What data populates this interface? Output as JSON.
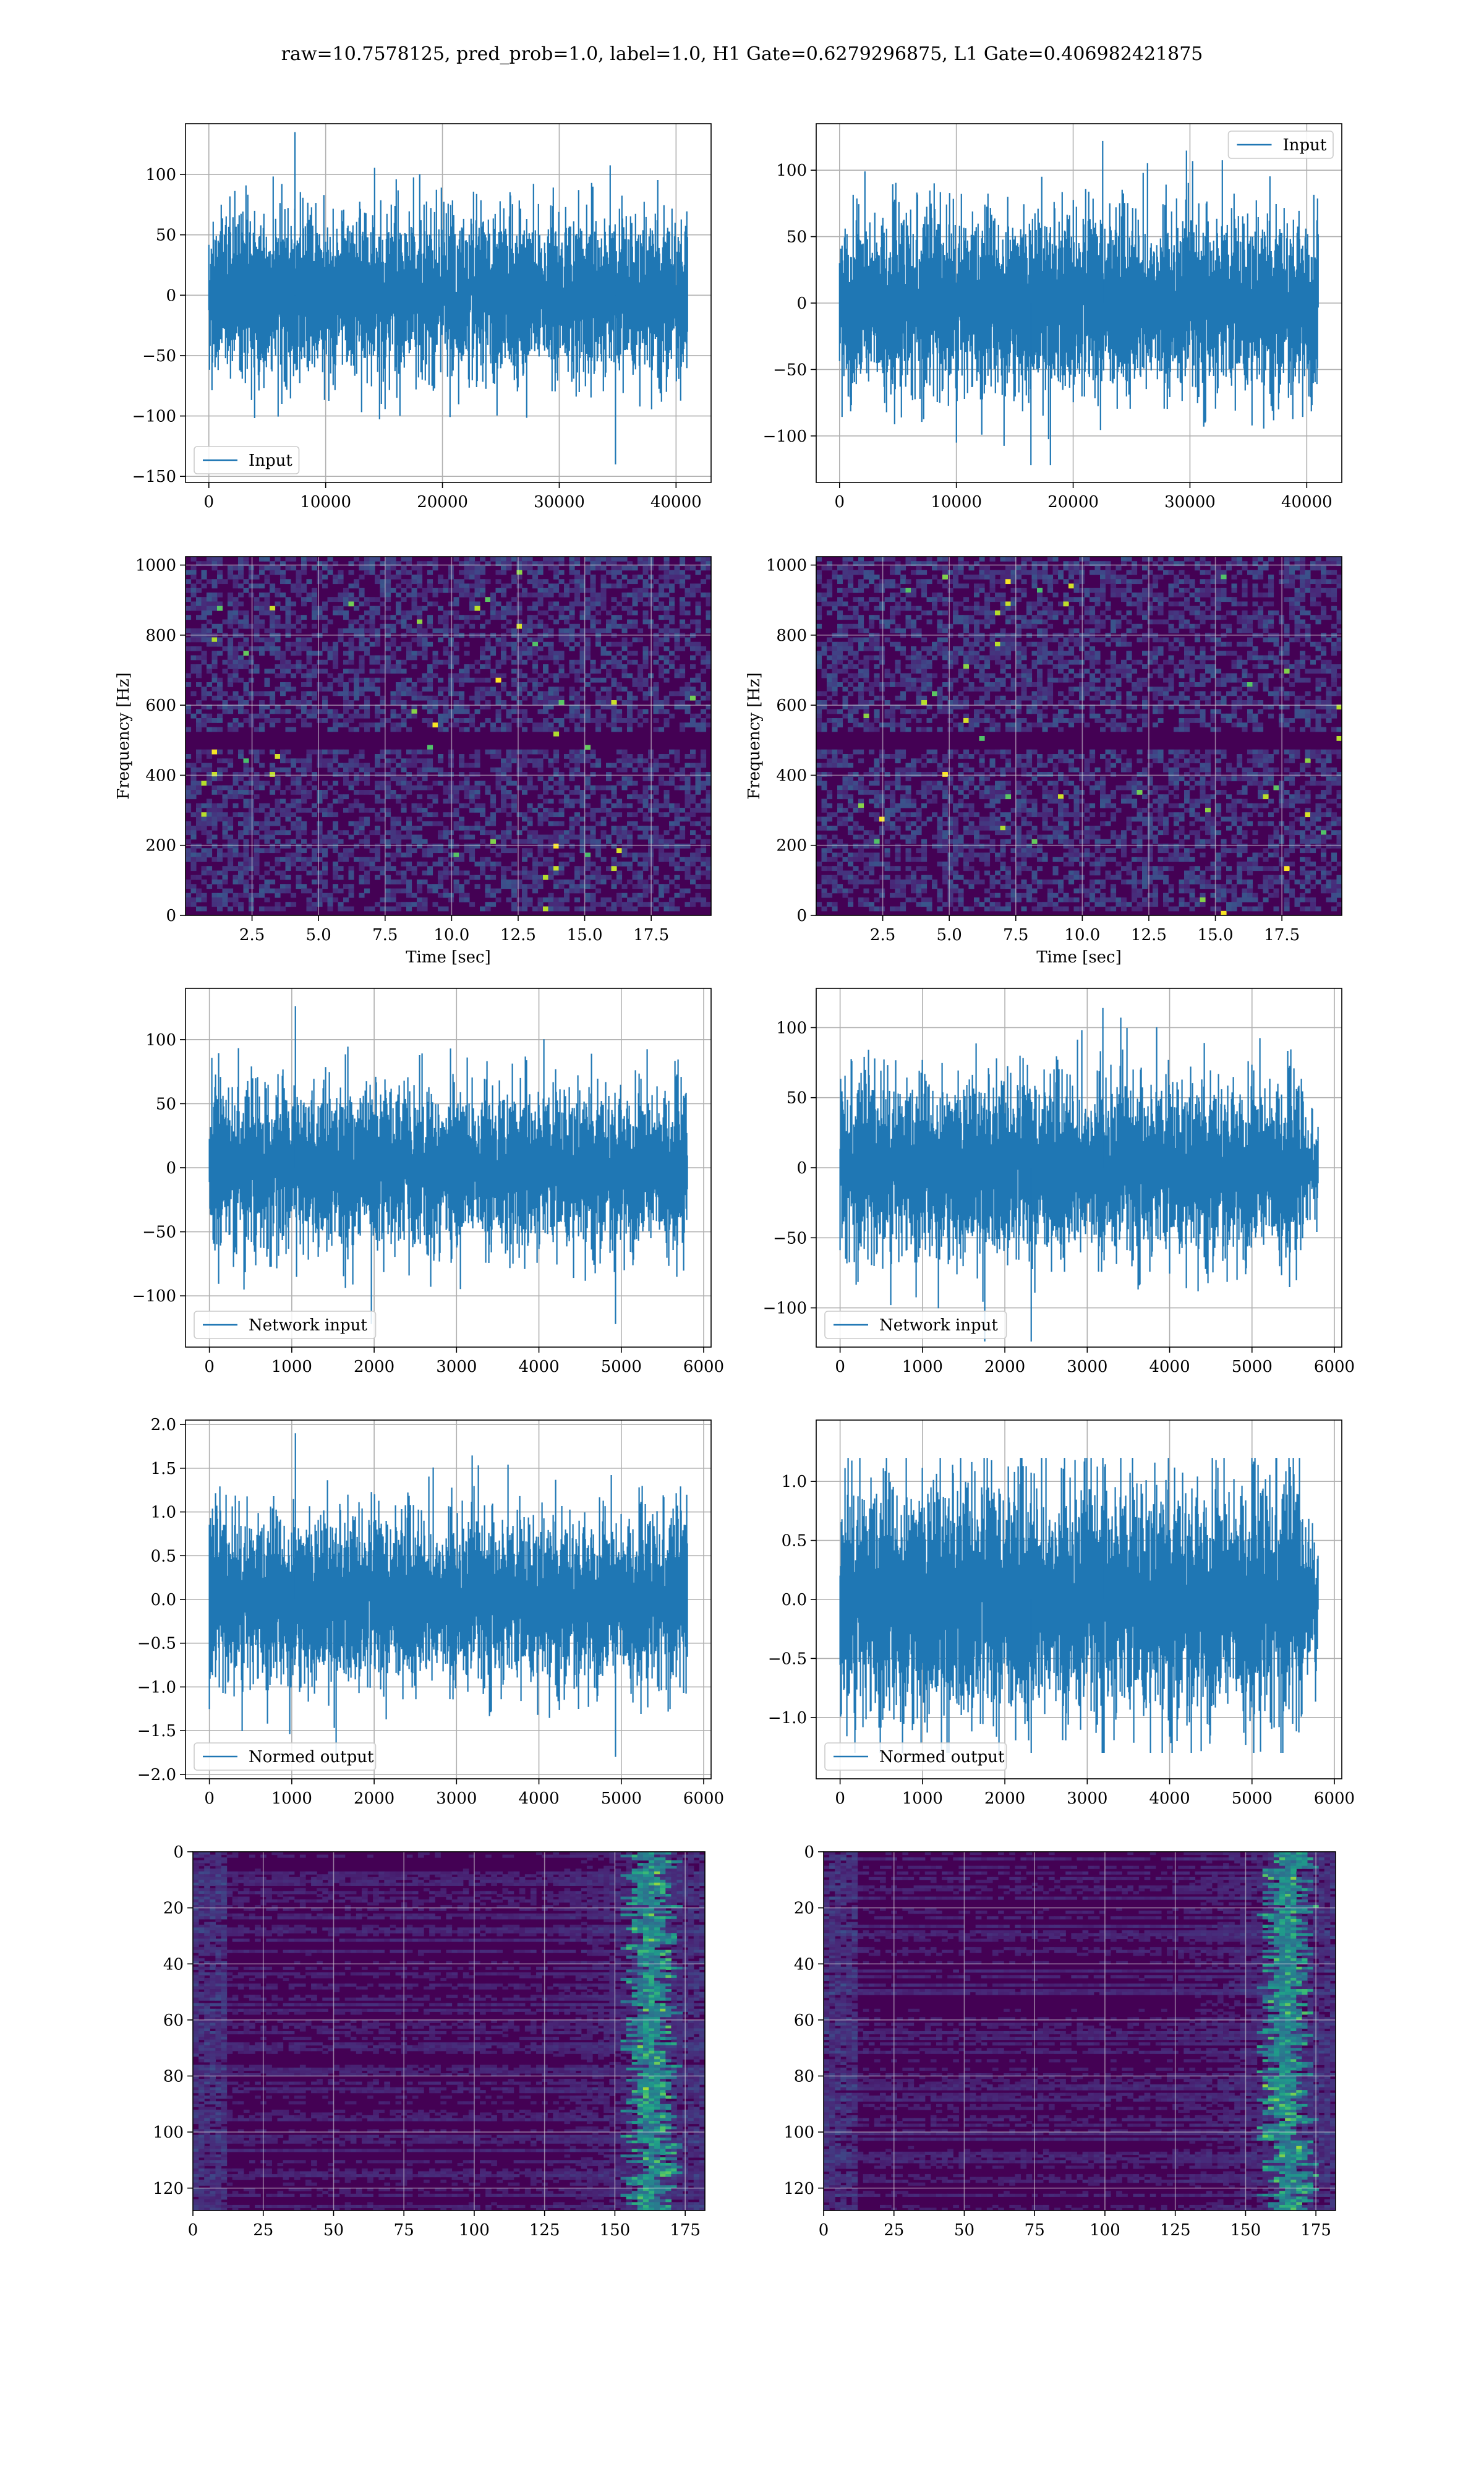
{
  "figure": {
    "title": "raw=10.7578125, pred_prob=1.0, label=1.0, H1 Gate=0.6279296875, L1 Gate=0.406982421875",
    "colors": {
      "line": "#1f77b4",
      "grid": "#b0b0b0",
      "viridis_low": "#440154",
      "viridis_mid": "#21908c",
      "viridis_high": "#fde725"
    }
  },
  "chart_data": [
    {
      "id": "input-h1",
      "type": "line",
      "title": "",
      "xlabel": "",
      "ylabel": "",
      "xlim": [
        -2000,
        43000
      ],
      "ylim": [
        -155,
        142
      ],
      "xticks": [
        0,
        10000,
        20000,
        30000,
        40000
      ],
      "yticks": [
        -150,
        -100,
        -50,
        0,
        50,
        100
      ],
      "series": [
        {
          "name": "Input",
          "n_points": 40960,
          "x_range": [
            0,
            40960
          ],
          "amplitude_sigma": 30,
          "peak_max": 135,
          "peak_min": -140
        }
      ],
      "legend": "lower-left",
      "grid": true
    },
    {
      "id": "input-l1",
      "type": "line",
      "title": "",
      "xlabel": "",
      "ylabel": "",
      "xlim": [
        -2000,
        43000
      ],
      "ylim": [
        -135,
        135
      ],
      "xticks": [
        0,
        10000,
        20000,
        30000,
        40000
      ],
      "yticks": [
        -100,
        -50,
        0,
        50,
        100
      ],
      "series": [
        {
          "name": "Input",
          "n_points": 40960,
          "x_range": [
            0,
            40960
          ],
          "amplitude_sigma": 30,
          "peak_max": 122,
          "peak_min": -122
        }
      ],
      "legend": "upper-right",
      "grid": true
    },
    {
      "id": "spectrogram-h1",
      "type": "heatmap",
      "title": "",
      "xlabel": "Time [sec]",
      "ylabel": "Frequency [Hz]",
      "xlim": [
        0,
        19.75
      ],
      "ylim": [
        0,
        1024
      ],
      "xticks": [
        2.5,
        5.0,
        7.5,
        10.0,
        12.5,
        15.0,
        17.5
      ],
      "yticks": [
        0,
        200,
        400,
        600,
        800,
        1000
      ],
      "colormap": "viridis",
      "grid": true
    },
    {
      "id": "spectrogram-l1",
      "type": "heatmap",
      "title": "",
      "xlabel": "Time [sec]",
      "ylabel": "Frequency [Hz]",
      "xlim": [
        0,
        19.75
      ],
      "ylim": [
        0,
        1024
      ],
      "xticks": [
        2.5,
        5.0,
        7.5,
        10.0,
        12.5,
        15.0,
        17.5
      ],
      "yticks": [
        0,
        200,
        400,
        600,
        800,
        1000
      ],
      "colormap": "viridis",
      "grid": true
    },
    {
      "id": "network-input-h1",
      "type": "line",
      "title": "",
      "xlabel": "",
      "ylabel": "",
      "xlim": [
        -290,
        6090
      ],
      "ylim": [
        -140,
        140
      ],
      "xticks": [
        0,
        1000,
        2000,
        3000,
        4000,
        5000,
        6000
      ],
      "yticks": [
        -100,
        -50,
        0,
        50,
        100
      ],
      "series": [
        {
          "name": "Network input",
          "n_points": 5800,
          "x_range": [
            0,
            5800
          ],
          "amplitude_sigma": 28,
          "peak_max": 126,
          "peak_min": -122
        }
      ],
      "legend": "lower-left",
      "grid": true
    },
    {
      "id": "network-input-l1",
      "type": "line",
      "title": "",
      "xlabel": "",
      "ylabel": "",
      "xlim": [
        -290,
        6090
      ],
      "ylim": [
        -128,
        128
      ],
      "xticks": [
        0,
        1000,
        2000,
        3000,
        4000,
        5000,
        6000
      ],
      "yticks": [
        -100,
        -50,
        0,
        50,
        100
      ],
      "series": [
        {
          "name": "Network input",
          "n_points": 5800,
          "x_range": [
            0,
            5800
          ],
          "amplitude_sigma": 28,
          "peak_max": 114,
          "peak_min": -124
        }
      ],
      "legend": "lower-left",
      "grid": true
    },
    {
      "id": "normed-output-h1",
      "type": "line",
      "title": "",
      "xlabel": "",
      "ylabel": "",
      "xlim": [
        -290,
        6090
      ],
      "ylim": [
        -2.05,
        2.05
      ],
      "xticks": [
        0,
        1000,
        2000,
        3000,
        4000,
        5000,
        6000
      ],
      "yticks": [
        -2.0,
        -1.5,
        -1.0,
        -0.5,
        0.0,
        0.5,
        1.0,
        1.5,
        2.0
      ],
      "series": [
        {
          "name": "Normed output",
          "n_points": 5800,
          "x_range": [
            0,
            5800
          ],
          "amplitude_sigma": 0.43,
          "peak_max": 1.9,
          "peak_min": -1.8
        }
      ],
      "legend": "lower-left",
      "grid": true
    },
    {
      "id": "normed-output-l1",
      "type": "line",
      "title": "",
      "xlabel": "",
      "ylabel": "",
      "xlim": [
        -290,
        6090
      ],
      "ylim": [
        -1.52,
        1.52
      ],
      "xticks": [
        0,
        1000,
        2000,
        3000,
        4000,
        5000,
        6000
      ],
      "yticks": [
        -1.0,
        -0.5,
        0.0,
        0.5,
        1.0
      ],
      "series": [
        {
          "name": "Normed output",
          "n_points": 5800,
          "x_range": [
            0,
            5800
          ],
          "amplitude_sigma": 0.45,
          "peak_max": 1.2,
          "peak_min": -1.3
        }
      ],
      "legend": "lower-left",
      "grid": true
    },
    {
      "id": "feature-map-h1",
      "type": "heatmap",
      "title": "",
      "xlabel": "",
      "ylabel": "",
      "xlim": [
        0,
        182
      ],
      "ylim": [
        128,
        0
      ],
      "xticks": [
        0,
        25,
        50,
        75,
        100,
        125,
        150,
        175
      ],
      "yticks": [
        0,
        20,
        40,
        60,
        80,
        100,
        120
      ],
      "colormap": "viridis",
      "bright_band_x": [
        150,
        175
      ],
      "grid": true
    },
    {
      "id": "feature-map-l1",
      "type": "heatmap",
      "title": "",
      "xlabel": "",
      "ylabel": "",
      "xlim": [
        0,
        182
      ],
      "ylim": [
        128,
        0
      ],
      "xticks": [
        0,
        25,
        50,
        75,
        100,
        125,
        150,
        175
      ],
      "yticks": [
        0,
        20,
        40,
        60,
        80,
        100,
        120
      ],
      "colormap": "viridis",
      "bright_band_x": [
        150,
        180
      ],
      "grid": true
    }
  ]
}
